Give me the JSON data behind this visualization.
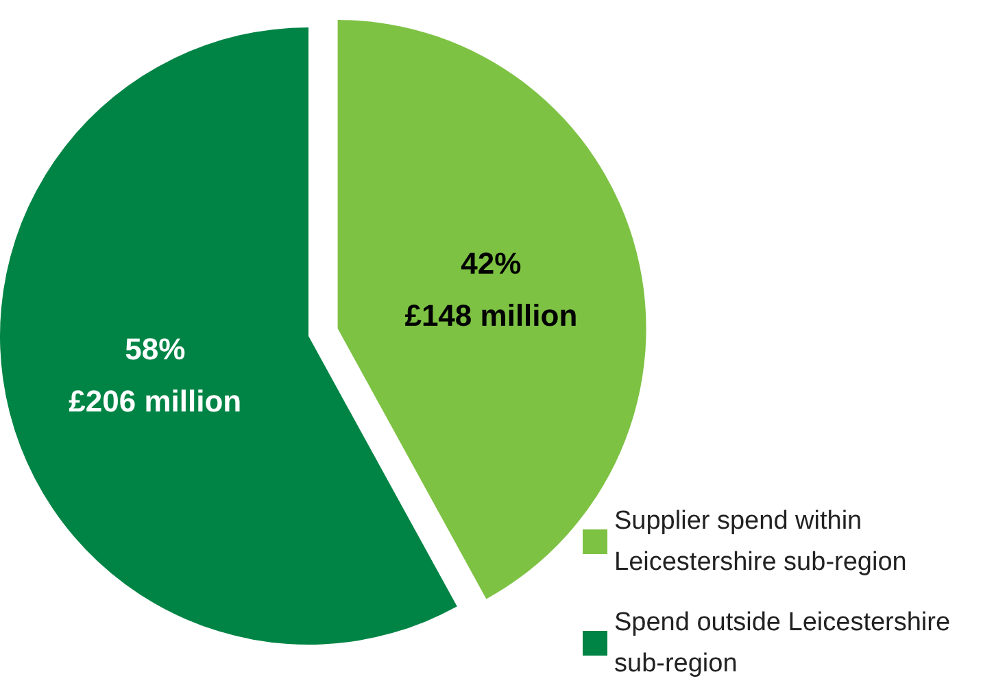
{
  "chart_data": {
    "type": "pie",
    "categories": [
      "Supplier spend within Leicestershire sub-region",
      "Spend outside Leicestershire sub-region"
    ],
    "values": [
      42,
      58
    ],
    "colors": [
      "#7dc243",
      "#008445"
    ],
    "value_labels": [
      "42%\n£148 million",
      "58%\n£206 million"
    ],
    "legend": "bottom right"
  }
}
